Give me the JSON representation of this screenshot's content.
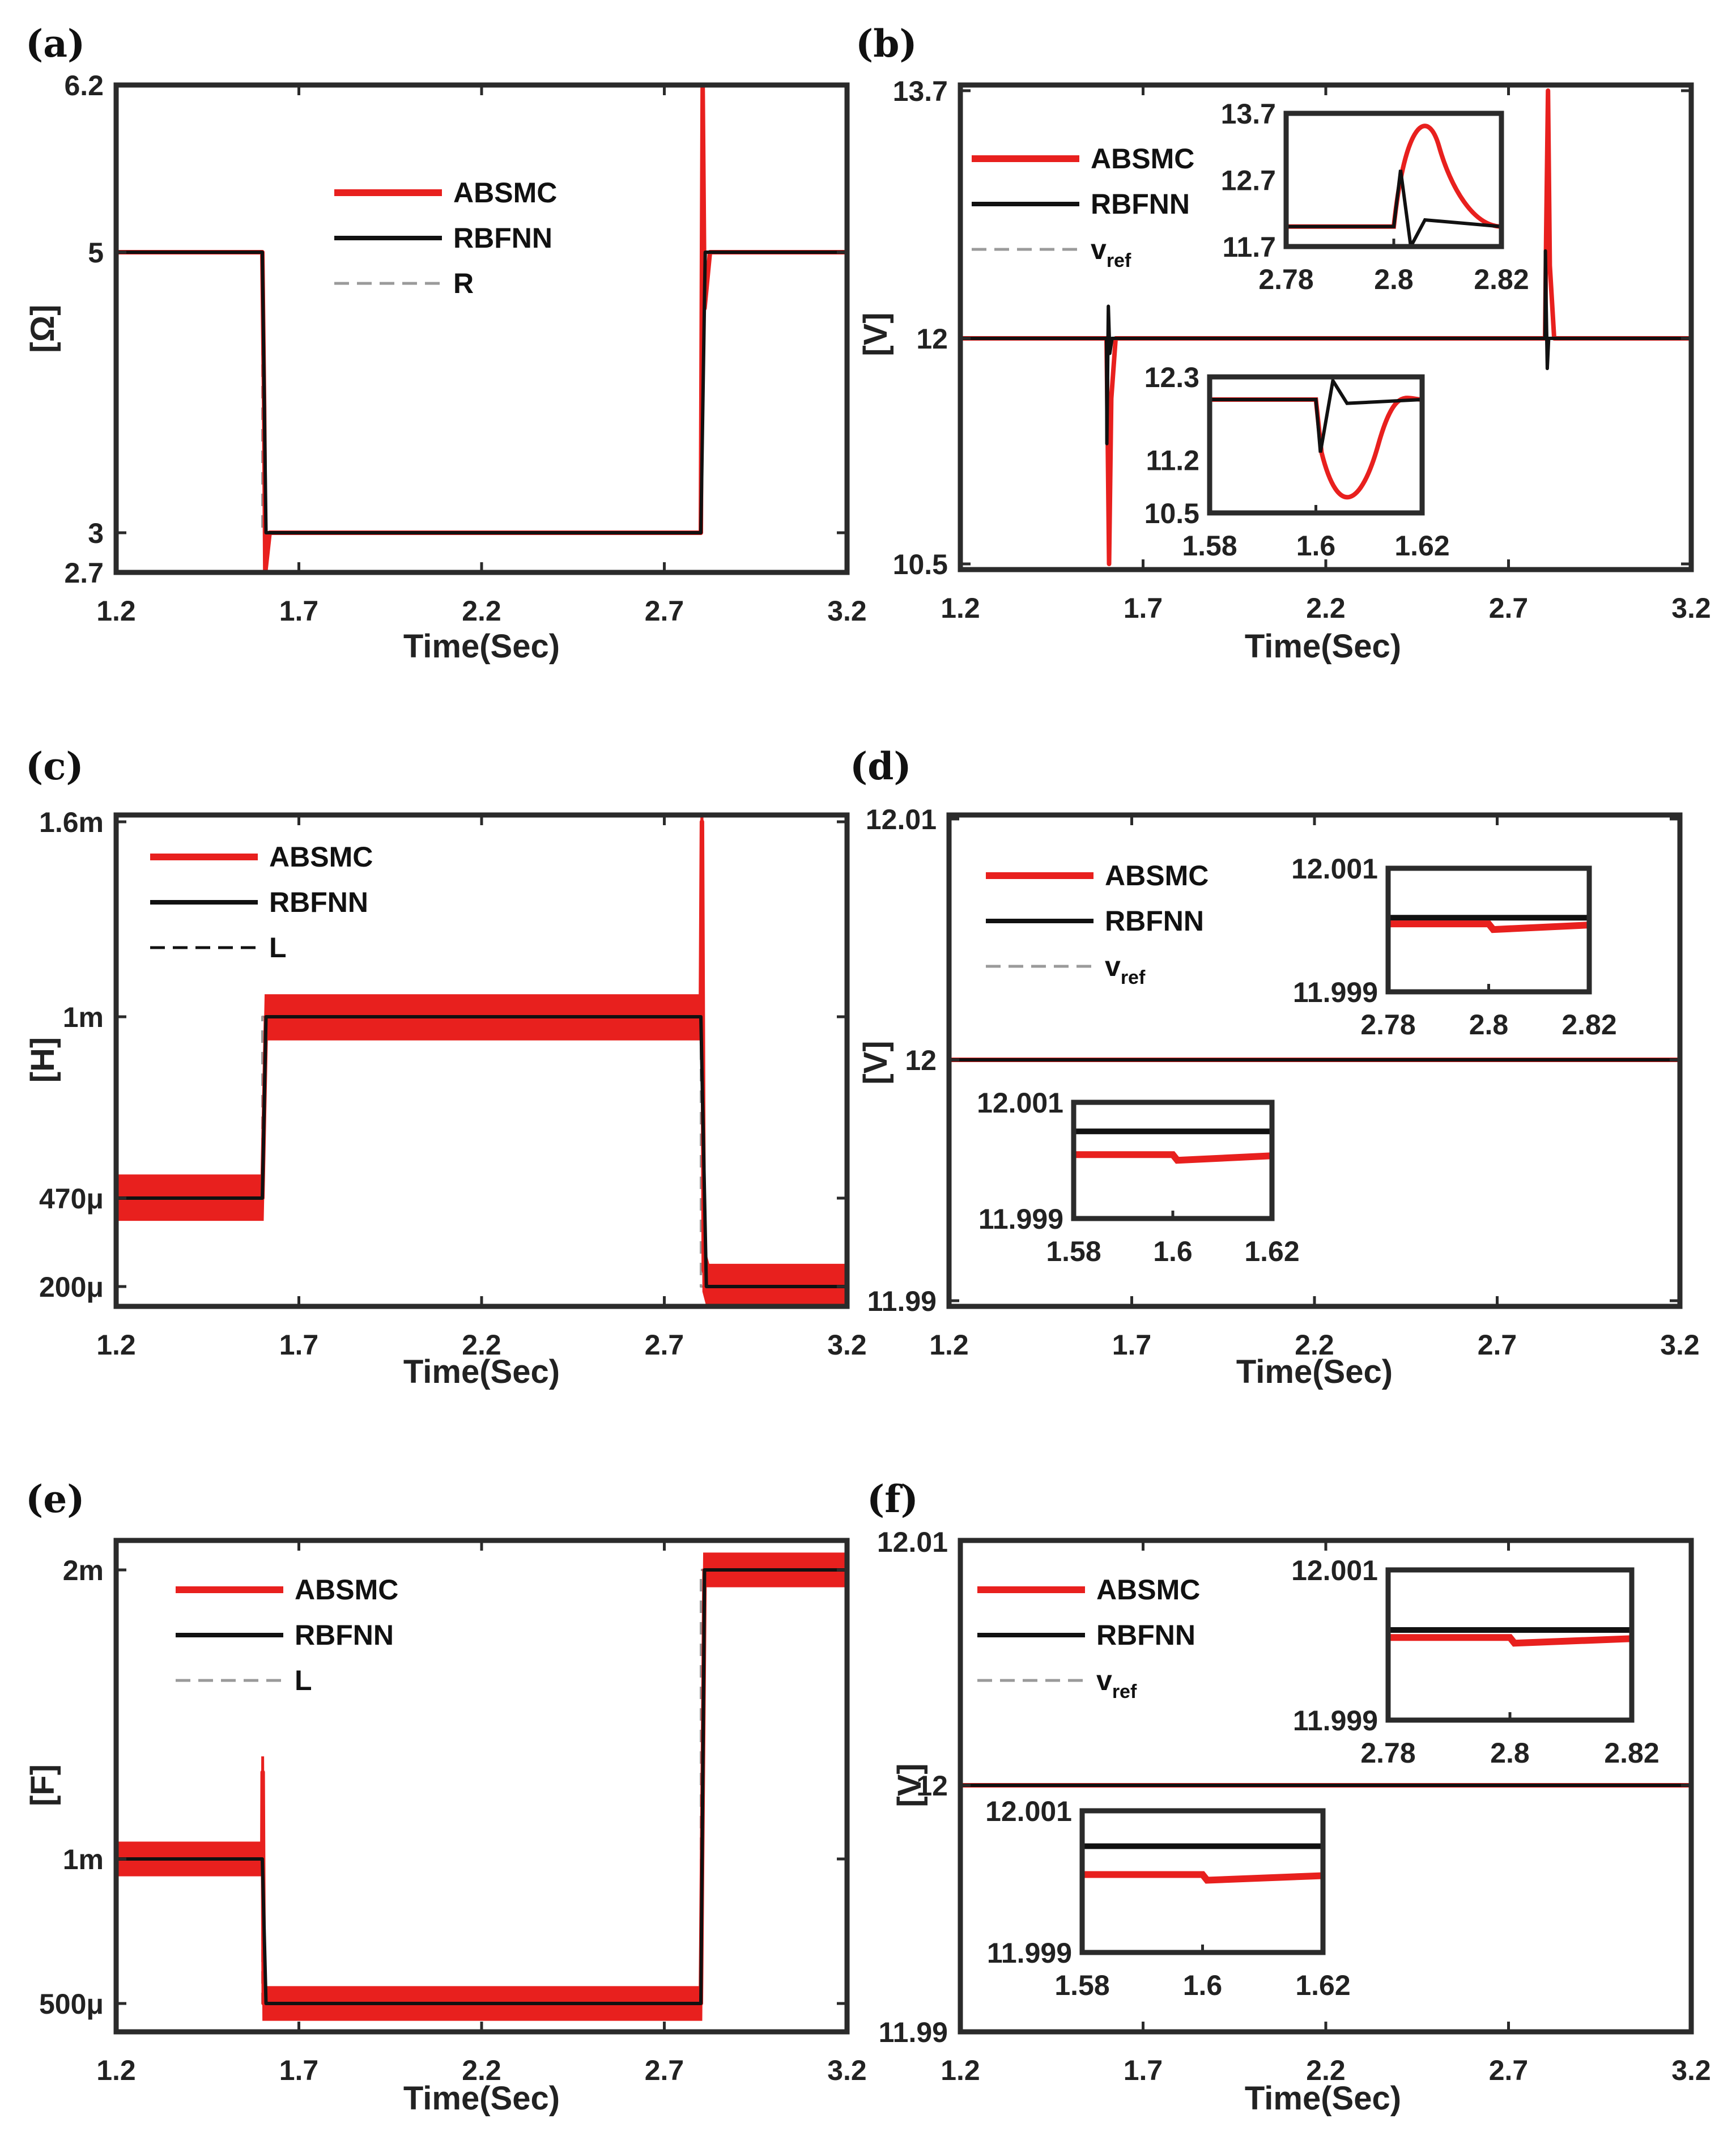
{
  "colors": {
    "absmc": "#e8201e",
    "rbfnn": "#111111",
    "ref": "#9a9a9a",
    "axes": "#2b2b2b"
  },
  "chart_data": [
    {
      "panel": "(a)",
      "type": "line",
      "xlabel": "Time(Sec)",
      "ylabel": "[Ω]",
      "xlim": [
        1.2,
        3.2
      ],
      "ylim": [
        2.7,
        6.2
      ],
      "xticks": [
        "1.2",
        "1.7",
        "2.2",
        "2.7",
        "3.2"
      ],
      "yticks": [
        "2.7",
        "3",
        "5",
        "6.2"
      ],
      "legend": [
        "ABSMC",
        "RBFNN",
        "R"
      ],
      "series": [
        {
          "name": "ABSMC",
          "x": [
            1.2,
            1.6,
            1.605,
            1.608,
            1.62,
            2.8,
            2.805,
            2.81,
            2.825,
            3.2
          ],
          "y": [
            5,
            5,
            3.9,
            2.7,
            3,
            3,
            6.2,
            4.6,
            5,
            5
          ]
        },
        {
          "name": "RBFNN",
          "x": [
            1.2,
            1.6,
            1.61,
            2.8,
            2.812,
            3.2
          ],
          "y": [
            5,
            5,
            3,
            3,
            5,
            5
          ]
        },
        {
          "name": "R",
          "x": [
            1.2,
            1.6,
            1.6,
            2.8,
            2.8,
            3.2
          ],
          "y": [
            5,
            5,
            3,
            3,
            5,
            5
          ]
        }
      ]
    },
    {
      "panel": "(b)",
      "type": "line",
      "xlabel": "Time(Sec)",
      "ylabel": "[V]",
      "xlim": [
        1.2,
        3.2
      ],
      "ylim": [
        10.5,
        13.7
      ],
      "xticks": [
        "1.2",
        "1.7",
        "2.2",
        "2.7",
        "3.2"
      ],
      "yticks": [
        "10.5",
        "12",
        "13.7"
      ],
      "legend": [
        "ABSMC",
        "RBFNN",
        "v_ref"
      ],
      "series": [
        {
          "name": "ABSMC",
          "x": [
            1.2,
            1.6,
            1.602,
            1.607,
            1.613,
            1.625,
            2.8,
            2.803,
            2.808,
            2.813,
            2.825,
            3.2
          ],
          "y": [
            12,
            12,
            11.6,
            10.5,
            11.6,
            12,
            12,
            12.7,
            13.7,
            12.5,
            12,
            12
          ]
        },
        {
          "name": "RBFNN",
          "x": [
            1.2,
            1.6,
            1.601,
            1.605,
            1.609,
            1.615,
            2.8,
            2.801,
            2.803,
            2.806,
            2.81,
            3.2
          ],
          "y": [
            12,
            12,
            11.3,
            12.22,
            11.9,
            12,
            12,
            12.6,
            12.25,
            11.8,
            12,
            12
          ]
        },
        {
          "name": "v_ref",
          "x": [
            1.2,
            3.2
          ],
          "y": [
            12,
            12
          ]
        }
      ],
      "insets": [
        {
          "xlim": [
            2.78,
            2.82
          ],
          "ylim": [
            11.7,
            13.7
          ],
          "xticks": [
            "2.78",
            "2.8",
            "2.82"
          ],
          "yticks": [
            "11.7",
            "12.7",
            "13.7"
          ]
        },
        {
          "xlim": [
            1.58,
            1.62
          ],
          "ylim": [
            10.5,
            12.3
          ],
          "xticks": [
            "1.58",
            "1.6",
            "1.62"
          ],
          "yticks": [
            "10.5",
            "11.2",
            "12.3"
          ]
        }
      ]
    },
    {
      "panel": "(c)",
      "type": "line",
      "xlabel": "Time(Sec)",
      "ylabel": "[H]",
      "xlim": [
        1.2,
        3.2
      ],
      "ylim": [
        0.00018,
        0.0016
      ],
      "xticks": [
        "1.2",
        "1.7",
        "2.2",
        "2.7",
        "3.2"
      ],
      "yticks": [
        "200μ",
        "470μ",
        "1m",
        "1.6m"
      ],
      "legend": [
        "ABSMC",
        "RBFNN",
        "L"
      ],
      "series": [
        {
          "name": "ABSMC",
          "x": [
            1.2,
            1.6,
            1.61,
            2.8,
            2.803,
            2.808,
            2.82,
            3.2
          ],
          "y": [
            0.00047,
            0.00047,
            0.001,
            0.001,
            0.0016,
            0.00025,
            0.0002,
            0.0002
          ],
          "band": 6.5e-05
        },
        {
          "name": "RBFNN",
          "x": [
            1.2,
            1.6,
            1.61,
            2.8,
            2.815,
            3.2
          ],
          "y": [
            0.00047,
            0.00047,
            0.001,
            0.001,
            0.0002,
            0.0002
          ]
        },
        {
          "name": "L",
          "x": [
            1.2,
            1.6,
            1.6,
            2.8,
            2.8,
            3.2
          ],
          "y": [
            0.00047,
            0.00047,
            0.001,
            0.001,
            0.0002,
            0.0002
          ]
        }
      ]
    },
    {
      "panel": "(d)",
      "type": "line",
      "xlabel": "Time(Sec)",
      "ylabel": "[V]",
      "xlim": [
        1.2,
        3.2
      ],
      "ylim": [
        11.99,
        12.01
      ],
      "xticks": [
        "1.2",
        "1.7",
        "2.2",
        "2.7",
        "3.2"
      ],
      "yticks": [
        "11.99",
        "12",
        "12.01"
      ],
      "legend": [
        "ABSMC",
        "RBFNN",
        "v_ref"
      ],
      "series": [
        {
          "name": "ABSMC",
          "x": [
            1.2,
            3.2
          ],
          "y": [
            12,
            12
          ]
        },
        {
          "name": "RBFNN",
          "x": [
            1.2,
            3.2
          ],
          "y": [
            12,
            12
          ]
        },
        {
          "name": "v_ref",
          "x": [
            1.2,
            3.2
          ],
          "y": [
            12,
            12
          ]
        }
      ],
      "insets": [
        {
          "xlim": [
            2.78,
            2.82
          ],
          "ylim": [
            11.999,
            12.001
          ],
          "xticks": [
            "2.78",
            "2.8",
            "2.82"
          ],
          "yticks": [
            "11.999",
            "12.001"
          ]
        },
        {
          "xlim": [
            1.58,
            1.62
          ],
          "ylim": [
            11.999,
            12.001
          ],
          "xticks": [
            "1.58",
            "1.6",
            "1.62"
          ],
          "yticks": [
            "11.999",
            "12.001"
          ]
        }
      ]
    },
    {
      "panel": "(e)",
      "type": "line",
      "xlabel": "Time(Sec)",
      "ylabel": "[F]",
      "xlim": [
        1.2,
        3.2
      ],
      "ylim": [
        0.00045,
        0.0021
      ],
      "xticks": [
        "1.2",
        "1.7",
        "2.2",
        "2.7",
        "3.2"
      ],
      "yticks": [
        "500μ",
        "1m",
        "2m"
      ],
      "legend": [
        "ABSMC",
        "RBFNN",
        "L"
      ],
      "series": [
        {
          "name": "ABSMC",
          "x": [
            1.2,
            1.6,
            1.601,
            1.604,
            1.62,
            2.8,
            2.81,
            3.2
          ],
          "y": [
            0.001,
            0.001,
            0.0013,
            0.0005,
            0.0005,
            0.0005,
            0.002,
            0.002
          ],
          "band": 5.5e-05
        },
        {
          "name": "RBFNN",
          "x": [
            1.2,
            1.6,
            1.61,
            2.8,
            2.81,
            3.2
          ],
          "y": [
            0.001,
            0.001,
            0.0005,
            0.0005,
            0.002,
            0.002
          ]
        },
        {
          "name": "L",
          "x": [
            1.2,
            1.6,
            1.6,
            2.8,
            2.8,
            3.2
          ],
          "y": [
            0.001,
            0.001,
            0.0005,
            0.0005,
            0.002,
            0.002
          ]
        }
      ]
    },
    {
      "panel": "(f)",
      "type": "line",
      "xlabel": "Time(Sec)",
      "ylabel": "[V]",
      "xlim": [
        1.2,
        3.2
      ],
      "ylim": [
        11.99,
        12.01
      ],
      "xticks": [
        "1.2",
        "1.7",
        "2.2",
        "2.7",
        "3.2"
      ],
      "yticks": [
        "11.99",
        "12",
        "12.01"
      ],
      "legend": [
        "ABSMC",
        "RBFNN",
        "v_ref"
      ],
      "series": [
        {
          "name": "ABSMC",
          "x": [
            1.2,
            3.2
          ],
          "y": [
            12,
            12
          ]
        },
        {
          "name": "RBFNN",
          "x": [
            1.2,
            3.2
          ],
          "y": [
            12,
            12
          ]
        },
        {
          "name": "v_ref",
          "x": [
            1.2,
            3.2
          ],
          "y": [
            12,
            12
          ]
        }
      ],
      "insets": [
        {
          "xlim": [
            2.78,
            2.82
          ],
          "ylim": [
            11.999,
            12.001
          ],
          "xticks": [
            "2.78",
            "2.8",
            "2.82"
          ],
          "yticks": [
            "11.999",
            "12.001"
          ]
        },
        {
          "xlim": [
            1.58,
            1.62
          ],
          "ylim": [
            11.999,
            12.001
          ],
          "xticks": [
            "1.58",
            "1.6",
            "1.62"
          ],
          "yticks": [
            "11.999",
            "12.001"
          ]
        }
      ]
    }
  ]
}
